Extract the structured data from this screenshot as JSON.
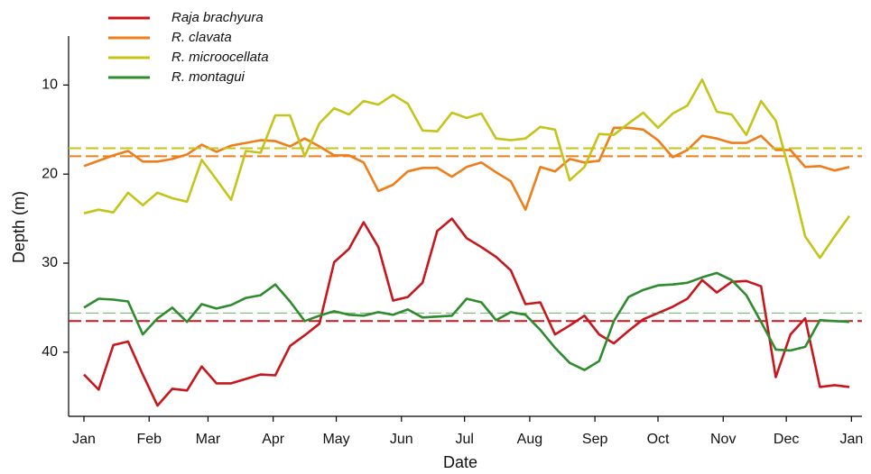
{
  "chart_data": {
    "type": "line",
    "x_label": "Date",
    "y_label": "Depth (m)",
    "x": [
      0,
      7,
      14,
      21,
      28,
      35,
      42,
      49,
      56,
      63,
      70,
      77,
      84,
      91,
      98,
      105,
      112,
      119,
      126,
      133,
      140,
      147,
      154,
      161,
      168,
      175,
      182,
      189,
      196,
      203,
      210,
      217,
      224,
      231,
      238,
      245,
      252,
      259,
      266,
      273,
      280,
      287,
      294,
      301,
      308,
      315,
      322,
      329,
      336,
      343,
      350,
      357,
      364
    ],
    "xlim": [
      -7.3,
      370
    ],
    "xticks": [
      {
        "value": 0,
        "label": "Jan"
      },
      {
        "value": 31,
        "label": "Feb"
      },
      {
        "value": 59,
        "label": "Mar"
      },
      {
        "value": 90,
        "label": "Apr"
      },
      {
        "value": 120,
        "label": "May"
      },
      {
        "value": 151,
        "label": "Jun"
      },
      {
        "value": 181,
        "label": "Jul"
      },
      {
        "value": 212,
        "label": "Aug"
      },
      {
        "value": 243,
        "label": "Sep"
      },
      {
        "value": 273,
        "label": "Oct"
      },
      {
        "value": 304,
        "label": "Nov"
      },
      {
        "value": 334,
        "label": "Dec"
      },
      {
        "value": 365,
        "label": "Jan"
      }
    ],
    "ylim": [
      47.2,
      4.5
    ],
    "yticks": [
      10,
      20,
      30,
      40
    ],
    "series": [
      {
        "name": "Raja brachyura",
        "color": "#c8161d",
        "mean": 36.5,
        "values": [
          42.5,
          44.2,
          39.2,
          38.8,
          42.5,
          46.0,
          44.1,
          44.3,
          41.6,
          43.5,
          43.5,
          43.0,
          42.5,
          42.6,
          39.3,
          38.1,
          36.8,
          29.9,
          28.4,
          25.4,
          28.2,
          34.2,
          33.8,
          32.2,
          26.4,
          25.0,
          27.2,
          28.2,
          29.3,
          30.8,
          34.6,
          34.4,
          38.0,
          37.0,
          35.9,
          38.0,
          39.0,
          37.6,
          36.3,
          35.6,
          34.9,
          34.0,
          31.9,
          33.3,
          32.1,
          32.0,
          32.6,
          42.8,
          38.0,
          36.2,
          43.9,
          43.7,
          43.9
        ]
      },
      {
        "name": "R. clavata",
        "color": "#ee7d1a",
        "mean": 18.0,
        "values": [
          19.1,
          18.5,
          17.9,
          17.4,
          18.6,
          18.6,
          18.3,
          17.8,
          16.7,
          17.5,
          16.8,
          16.5,
          16.2,
          16.3,
          16.9,
          16.0,
          16.9,
          17.9,
          17.9,
          18.7,
          21.9,
          21.2,
          19.7,
          19.3,
          19.3,
          20.3,
          19.2,
          18.7,
          19.8,
          20.8,
          24.0,
          19.2,
          19.7,
          18.3,
          18.7,
          18.5,
          14.8,
          14.8,
          15.0,
          16.2,
          18.1,
          17.3,
          15.7,
          16.0,
          16.5,
          16.5,
          15.7,
          17.3,
          17.3,
          19.2,
          19.1,
          19.6,
          19.2
        ]
      },
      {
        "name": "R. microocellata",
        "color": "#c4c41a",
        "mean": 17.1,
        "values": [
          24.4,
          24.0,
          24.3,
          22.1,
          23.5,
          22.1,
          22.7,
          23.1,
          18.4,
          20.6,
          22.9,
          17.4,
          17.6,
          13.4,
          13.4,
          18.0,
          14.3,
          12.6,
          13.3,
          11.8,
          12.2,
          11.1,
          12.1,
          15.1,
          15.2,
          13.1,
          13.7,
          13.2,
          16.0,
          16.2,
          16.0,
          14.7,
          15.0,
          20.7,
          19.2,
          15.5,
          15.6,
          14.3,
          13.1,
          14.8,
          13.2,
          12.3,
          9.4,
          13.0,
          13.3,
          15.6,
          11.8,
          14.0,
          20.1,
          27.0,
          29.4,
          27.0,
          24.7
        ]
      },
      {
        "name": "R. montagui",
        "color": "#2e8b2e",
        "mean": 35.6,
        "values": [
          35.0,
          34.0,
          34.1,
          34.3,
          38.0,
          36.2,
          35.0,
          36.6,
          34.6,
          35.1,
          34.7,
          33.9,
          33.6,
          32.4,
          34.3,
          36.5,
          35.9,
          35.4,
          35.8,
          35.9,
          35.5,
          35.8,
          35.2,
          36.1,
          36.0,
          35.9,
          34.0,
          34.4,
          36.4,
          35.5,
          35.8,
          37.5,
          39.5,
          41.2,
          42.0,
          41.0,
          36.5,
          33.8,
          33.0,
          32.5,
          32.4,
          32.2,
          31.6,
          31.1,
          31.9,
          33.6,
          36.6,
          39.7,
          39.8,
          39.4,
          36.4,
          36.5,
          36.6
        ]
      }
    ]
  }
}
